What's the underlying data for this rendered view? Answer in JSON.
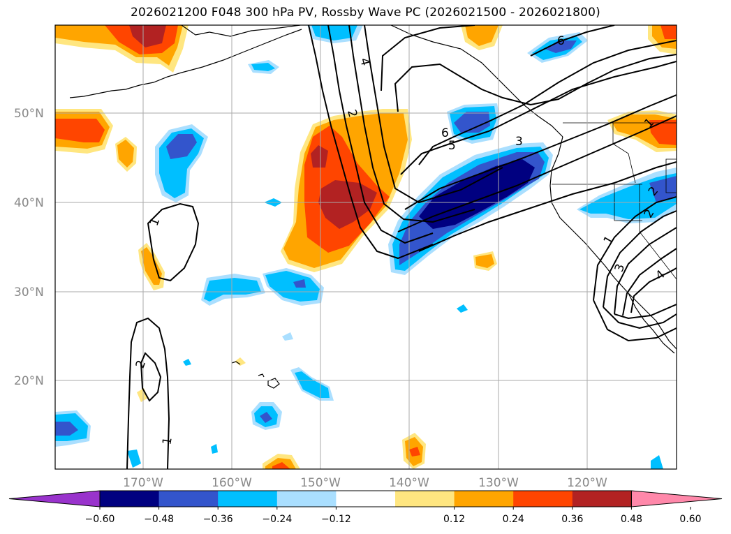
{
  "title": "2026021200 F048 300 hPa PV, Rossby Wave PC (2026021500 - 2026021800)",
  "map": {
    "lat_labels": [
      "50°N",
      "40°N",
      "30°N",
      "20°N"
    ],
    "lon_labels": [
      "170°W",
      "160°W",
      "150°W",
      "140°W",
      "130°W",
      "120°W"
    ],
    "contour_labels": [
      "6",
      "4",
      "2",
      "6",
      "5",
      "3",
      "1",
      "1",
      "2",
      "2",
      "1",
      "3",
      "4",
      "1",
      "2"
    ]
  },
  "colorbar": {
    "ticks": [
      "−0.60",
      "−0.48",
      "−0.36",
      "−0.24",
      "−0.12",
      "0.12",
      "0.24",
      "0.36",
      "0.48",
      "0.60"
    ],
    "colors": [
      "#9933cc",
      "#000080",
      "#3355cc",
      "#00bfff",
      "#aadfff",
      "#ffffff",
      "#ffe680",
      "#ffa500",
      "#ff4500",
      "#b22222",
      "#ff88aa"
    ]
  },
  "colors": {
    "strong_negative": "#000080",
    "negative": "#3355cc",
    "mild_negative": "#00bfff",
    "weak_negative": "#aadfff",
    "weak_positive": "#ffe680",
    "mild_positive": "#ffa500",
    "positive": "#ff4500",
    "strong_positive": "#b22222"
  }
}
